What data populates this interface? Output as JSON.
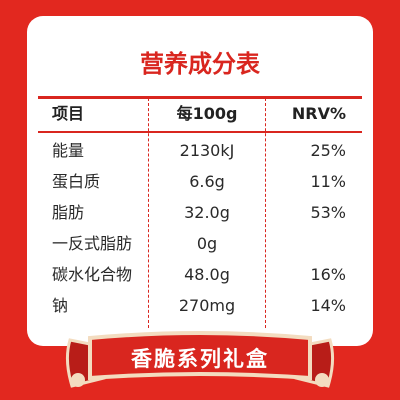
{
  "header": {
    "title": "营养成分表"
  },
  "table": {
    "columns": [
      "项目",
      "每100g",
      "NRV%"
    ],
    "rows": [
      [
        "能量",
        "2130kJ",
        "25%"
      ],
      [
        "蛋白质",
        "6.6g",
        "11%"
      ],
      [
        "脂肪",
        "32.0g",
        "53%"
      ],
      [
        "一反式脂肪",
        "0g"
      ],
      [
        "碳水化合物",
        "48.0g",
        "16%"
      ],
      [
        "钠",
        "270mg",
        "14%"
      ]
    ]
  },
  "banner": {
    "text": "香脆系列礼盒"
  }
}
